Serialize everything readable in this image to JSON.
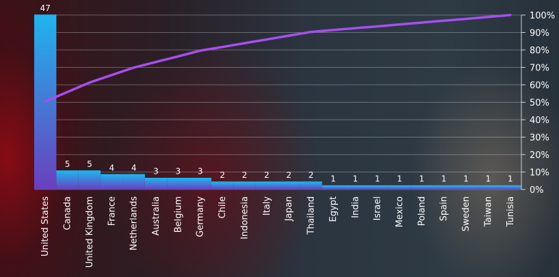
{
  "chart_data": {
    "type": "bar",
    "title": "",
    "xlabel": "",
    "ylabel": "",
    "categories": [
      "United States",
      "Canada",
      "United Kingdom",
      "France",
      "Netherlands",
      "Australia",
      "Belgium",
      "Germany",
      "Chile",
      "Indonesia",
      "Italy",
      "Japan",
      "Thailand",
      "Egypt",
      "India",
      "Israel",
      "Mexico",
      "Poland",
      "Spain",
      "Sweden",
      "Taiwan",
      "Tunisia"
    ],
    "series": [
      {
        "type": "bar",
        "values": [
          47,
          5,
          5,
          4,
          4,
          3,
          3,
          3,
          2,
          2,
          2,
          2,
          2,
          1,
          1,
          1,
          1,
          1,
          1,
          1,
          1,
          1
        ]
      },
      {
        "type": "line",
        "axis": "right",
        "values": [
          50.5,
          55.9,
          61.3,
          65.6,
          69.9,
          73.1,
          76.3,
          79.6,
          81.7,
          83.9,
          86.0,
          88.2,
          90.3,
          91.4,
          92.5,
          93.5,
          94.6,
          95.7,
          96.8,
          97.8,
          98.9,
          100.0
        ]
      }
    ],
    "ylim": [
      0,
      47
    ],
    "y2lim": [
      0,
      100
    ],
    "y2_ticks": [
      "0%",
      "10%",
      "20%",
      "30%",
      "40%",
      "50%",
      "60%",
      "70%",
      "80%",
      "90%",
      "100%"
    ],
    "grid": true,
    "colors": {
      "bar_top": "#1fb4ee",
      "bar_bottom": "#6a3fbf",
      "line": "#a64ff0",
      "axis": "#cfd6dd"
    }
  }
}
